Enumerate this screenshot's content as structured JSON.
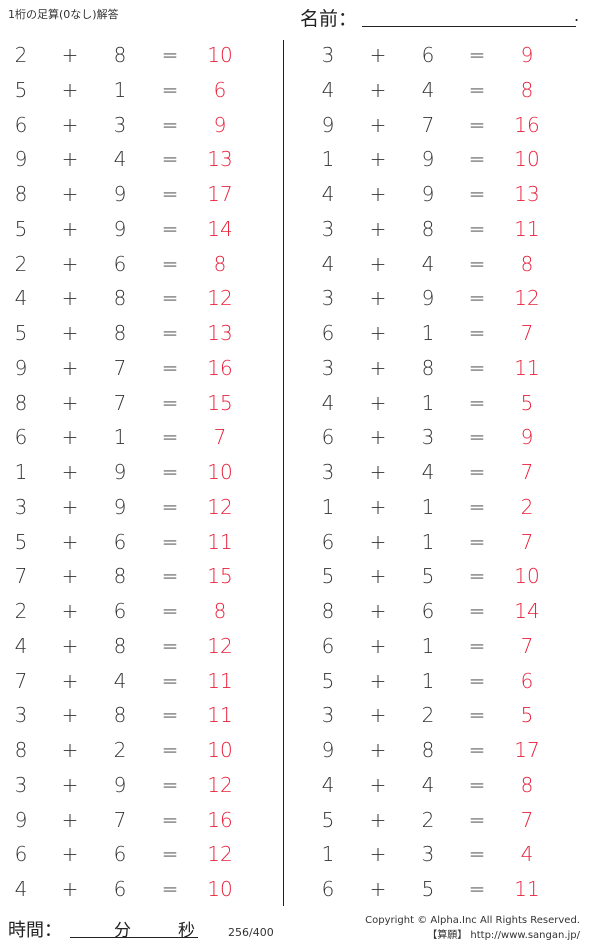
{
  "header": {
    "title": "1桁の足算(0なし)解答",
    "name_label": "名前：",
    "name_end": "."
  },
  "operator": "+",
  "equals": "=",
  "left": [
    [
      2,
      8,
      10
    ],
    [
      5,
      1,
      6
    ],
    [
      6,
      3,
      9
    ],
    [
      9,
      4,
      13
    ],
    [
      8,
      9,
      17
    ],
    [
      5,
      9,
      14
    ],
    [
      2,
      6,
      8
    ],
    [
      4,
      8,
      12
    ],
    [
      5,
      8,
      13
    ],
    [
      9,
      7,
      16
    ],
    [
      8,
      7,
      15
    ],
    [
      6,
      1,
      7
    ],
    [
      1,
      9,
      10
    ],
    [
      3,
      9,
      12
    ],
    [
      5,
      6,
      11
    ],
    [
      7,
      8,
      15
    ],
    [
      2,
      6,
      8
    ],
    [
      4,
      8,
      12
    ],
    [
      7,
      4,
      11
    ],
    [
      3,
      8,
      11
    ],
    [
      8,
      2,
      10
    ],
    [
      3,
      9,
      12
    ],
    [
      9,
      7,
      16
    ],
    [
      6,
      6,
      12
    ],
    [
      4,
      6,
      10
    ]
  ],
  "right": [
    [
      3,
      6,
      9
    ],
    [
      4,
      4,
      8
    ],
    [
      9,
      7,
      16
    ],
    [
      1,
      9,
      10
    ],
    [
      4,
      9,
      13
    ],
    [
      3,
      8,
      11
    ],
    [
      4,
      4,
      8
    ],
    [
      3,
      9,
      12
    ],
    [
      6,
      1,
      7
    ],
    [
      3,
      8,
      11
    ],
    [
      4,
      1,
      5
    ],
    [
      6,
      3,
      9
    ],
    [
      3,
      4,
      7
    ],
    [
      1,
      1,
      2
    ],
    [
      6,
      1,
      7
    ],
    [
      5,
      5,
      10
    ],
    [
      8,
      6,
      14
    ],
    [
      6,
      1,
      7
    ],
    [
      5,
      1,
      6
    ],
    [
      3,
      2,
      5
    ],
    [
      9,
      8,
      17
    ],
    [
      4,
      4,
      8
    ],
    [
      5,
      2,
      7
    ],
    [
      1,
      3,
      4
    ],
    [
      6,
      5,
      11
    ]
  ],
  "footer": {
    "time_label": "時間：",
    "minutes": "分",
    "seconds": "秒",
    "page": "256/400",
    "copyright": "Copyright © Alpha.Inc All Rights Reserved.",
    "site": "【算願】 http://www.sangan.jp/"
  },
  "colors": {
    "answer": "#e8203a",
    "text": "#333333"
  }
}
